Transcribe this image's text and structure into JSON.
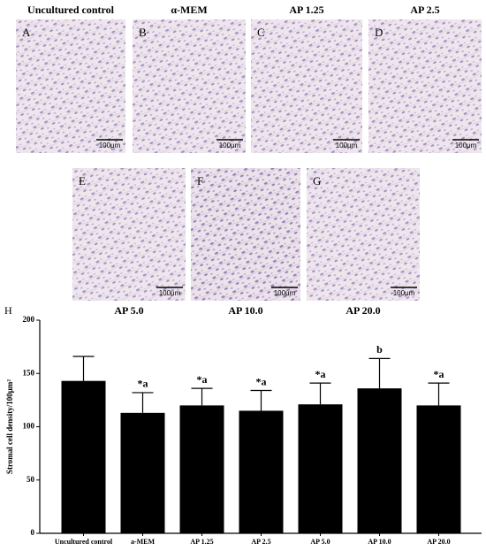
{
  "panels": [
    {
      "letter": "A",
      "title": "Uncultured control",
      "scale": "100μm"
    },
    {
      "letter": "B",
      "title": "α-MEM",
      "scale": "100μm"
    },
    {
      "letter": "C",
      "title": "AP 1.25",
      "scale": "100μm"
    },
    {
      "letter": "D",
      "title": "AP 2.5",
      "scale": "100μm"
    },
    {
      "letter": "E",
      "title": "AP 5.0",
      "scale": "100μm"
    },
    {
      "letter": "F",
      "title": "AP 10.0",
      "scale": "100μm"
    },
    {
      "letter": "G",
      "title": "AP 20.0",
      "scale": "100μm"
    }
  ],
  "chart_data": {
    "type": "bar",
    "panel_letter": "H",
    "y_label": "Stromal cell density/100μm²",
    "categories": [
      "Uncultured control",
      "a-MEM",
      "AP 1.25",
      "AP 2.5",
      "AP 5.0",
      "AP 10.0",
      "AP 20.0"
    ],
    "values": [
      143,
      113,
      120,
      115,
      121,
      136,
      120
    ],
    "errors": [
      23,
      19,
      16,
      19,
      20,
      28,
      21
    ],
    "annotations": [
      null,
      "*a",
      "*a",
      "*a",
      "*a",
      "b",
      "*a"
    ],
    "color": "#000000",
    "ylim": [
      0,
      200
    ],
    "yticks": [
      0,
      50,
      100,
      150,
      200
    ]
  }
}
